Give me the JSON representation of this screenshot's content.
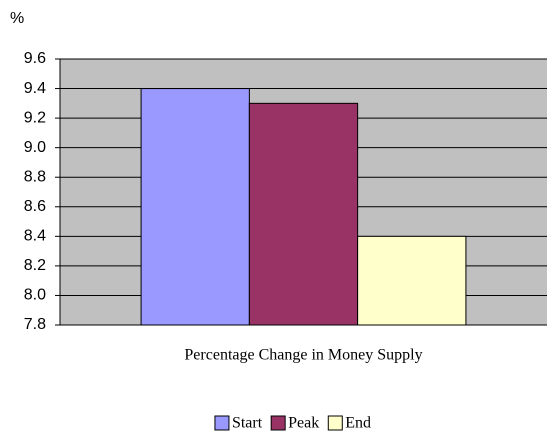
{
  "chart_data": {
    "type": "bar",
    "y_label": "%",
    "categories": [
      "Percentage Change in Money Supply"
    ],
    "series": [
      {
        "name": "Start",
        "color": "#9999ff",
        "values": [
          9.4
        ]
      },
      {
        "name": "Peak",
        "color": "#993366",
        "values": [
          9.3
        ]
      },
      {
        "name": "End",
        "color": "#ffffcc",
        "values": [
          8.4
        ]
      }
    ],
    "ylim": [
      7.8,
      9.6
    ],
    "yticks": [
      7.8,
      {
        "value": 8,
        "label": "8.0"
      },
      8.2,
      8.4,
      8.6,
      8.8,
      {
        "value": 9,
        "label": "9.0"
      },
      9.2,
      9.4,
      9.6
    ],
    "grid": true,
    "plot_background": "#c0c0c0",
    "legend": "bottom"
  }
}
